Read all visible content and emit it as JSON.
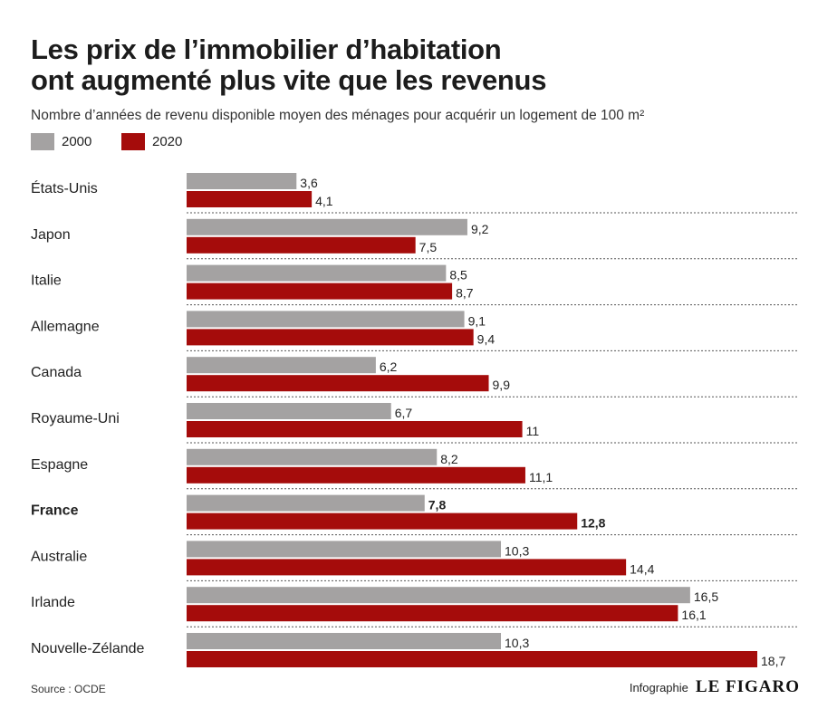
{
  "title_line1": "Les prix de l’immobilier d’habitation",
  "title_line2": "ont augmenté plus vite que les revenus",
  "subtitle": "Nombre d’années de revenu disponible moyen des ménages pour acquérir un logement de 100 m²",
  "source": "Source : OCDE",
  "credit_prefix": "Infographie",
  "credit_logo": "LE FIGARO",
  "colors": {
    "series_2000": "#a4a2a2",
    "series_2020": "#a50c0b",
    "divider": "#555555"
  },
  "chart_data": {
    "type": "bar",
    "orientation": "horizontal",
    "title": "Les prix de l’immobilier d’habitation ont augmenté plus vite que les revenus",
    "subtitle": "Nombre d’années de revenu disponible moyen des ménages pour acquérir un logement de 100 m²",
    "categories": [
      "États-Unis",
      "Japon",
      "Italie",
      "Allemagne",
      "Canada",
      "Royaume-Uni",
      "Espagne",
      "France",
      "Australie",
      "Irlande",
      "Nouvelle-Zélande"
    ],
    "highlight": "France",
    "series": [
      {
        "name": "2000",
        "values": [
          3.6,
          9.2,
          8.5,
          9.1,
          6.2,
          6.7,
          8.2,
          7.8,
          10.3,
          16.5,
          10.3
        ],
        "labels": [
          "3,6",
          "9,2",
          "8,5",
          "9,1",
          "6,2",
          "6,7",
          "8,2",
          "7,8",
          "10,3",
          "16,5",
          "10,3"
        ]
      },
      {
        "name": "2020",
        "values": [
          4.1,
          7.5,
          8.7,
          9.4,
          9.9,
          11,
          11.1,
          12.8,
          14.4,
          16.1,
          18.7
        ],
        "labels": [
          "4,1",
          "7,5",
          "8,7",
          "9,4",
          "9,9",
          "11",
          "11,1",
          "12,8",
          "14,4",
          "16,1",
          "18,7"
        ]
      }
    ],
    "xlim": [
      0,
      18.7
    ],
    "legend": "top-left",
    "grid": false,
    "xlabel": "",
    "ylabel": ""
  }
}
